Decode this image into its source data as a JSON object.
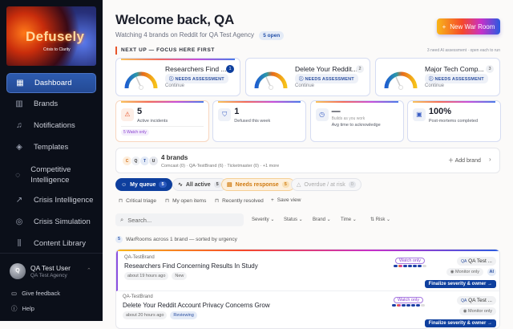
{
  "app": {
    "logo_word": "Defusely",
    "logo_tagline": "Crisis to Clarity"
  },
  "sidebar": {
    "items": [
      {
        "label": "Dashboard",
        "icon": "grid-icon",
        "active": true
      },
      {
        "label": "Brands",
        "icon": "building-icon"
      },
      {
        "label": "Notifications",
        "icon": "bell-icon"
      },
      {
        "label": "Templates",
        "icon": "tag-icon"
      },
      {
        "label": "Competitive Intelligence",
        "icon": "target-icon"
      },
      {
        "label": "Crisis Intelligence",
        "icon": "trend-icon"
      },
      {
        "label": "Crisis Simulation",
        "icon": "radar-icon"
      },
      {
        "label": "Content Library",
        "icon": "library-icon"
      }
    ],
    "user": {
      "initial": "Q",
      "name": "QA Test User",
      "agency": "QA Test Agency"
    },
    "feedback": "Give feedback",
    "help": "Help"
  },
  "header": {
    "title": "Welcome back, QA",
    "subtitle": "Watching 4 brands on Reddit for QA Test Agency",
    "open_badge": "5 open",
    "new_button": "New War Room"
  },
  "next_up": {
    "title": "NEXT UP — FOCUS HERE FIRST",
    "hint": "3 need AI assessment · open each to run",
    "cards": [
      {
        "title": "Researchers Find ...",
        "rank": "1",
        "status": "NEEDS ASSESSMENT",
        "action": "Continue"
      },
      {
        "title": "Delete Your Reddit...",
        "rank": "2",
        "status": "NEEDS ASSESSMENT",
        "action": "Continue"
      },
      {
        "title": "Major Tech Comp...",
        "rank": "3",
        "status": "NEEDS ASSESSMENT",
        "action": "Continue"
      }
    ]
  },
  "stats": [
    {
      "value": "5",
      "label": "Active incidents",
      "badge": "5 Watch only",
      "icon": "warning-icon"
    },
    {
      "value": "1",
      "label": "Defused this week",
      "icon": "shield-check-icon"
    },
    {
      "value": "—",
      "hint": "Builds as you work",
      "label": "Avg time to acknowledge",
      "icon": "clock-icon"
    },
    {
      "value": "100%",
      "label": "Post-mortems completed",
      "icon": "document-icon"
    }
  ],
  "brands": {
    "avatars": [
      "C",
      "Q",
      "T",
      "U"
    ],
    "title": "4 brands",
    "list": "Comcast (0) · QA-TestBrand (6) · Ticketmaster (0) · +1 more",
    "add": "Add brand"
  },
  "tabs": [
    {
      "label": "My queue",
      "count": "5"
    },
    {
      "label": "All active",
      "count": "5"
    },
    {
      "label": "Needs response",
      "count": "5"
    },
    {
      "label": "Overdue / at risk",
      "count": "0"
    }
  ],
  "saved_views": [
    "Critical triage",
    "My open items",
    "Recently resolved",
    "Save view"
  ],
  "filters": {
    "search_placeholder": "Search...",
    "items": [
      "Severity",
      "Status",
      "Brand",
      "Time"
    ],
    "sort": "Risk"
  },
  "warrooms": {
    "count": "5",
    "summary": "WarRooms across 1 brand — sorted by urgency",
    "rows": [
      {
        "brand": "QA-TestBrand",
        "title": "Researchers Find Concerning Results In Study",
        "time": "about 19 hours ago",
        "status": "New",
        "watch": "Watch only",
        "owner": "QA Test ...",
        "owner_initials": "QA",
        "monitor": "Monitor only",
        "ai": "AI",
        "action": "Finalize severity & owner →"
      },
      {
        "brand": "QA-TestBrand",
        "title": "Delete Your Reddit Account Privacy Concerns Grow",
        "time": "about 20 hours ago",
        "status": "Reviewing",
        "watch": "Watch only",
        "owner": "QA Test ...",
        "owner_initials": "QA",
        "monitor": "Monitor only",
        "action": "Finalize severity & owner →"
      }
    ]
  },
  "colors": {
    "sidebar_bg": "#0b0f19",
    "primary": "#0e3f9e",
    "accent_orange": "#e8552a"
  }
}
